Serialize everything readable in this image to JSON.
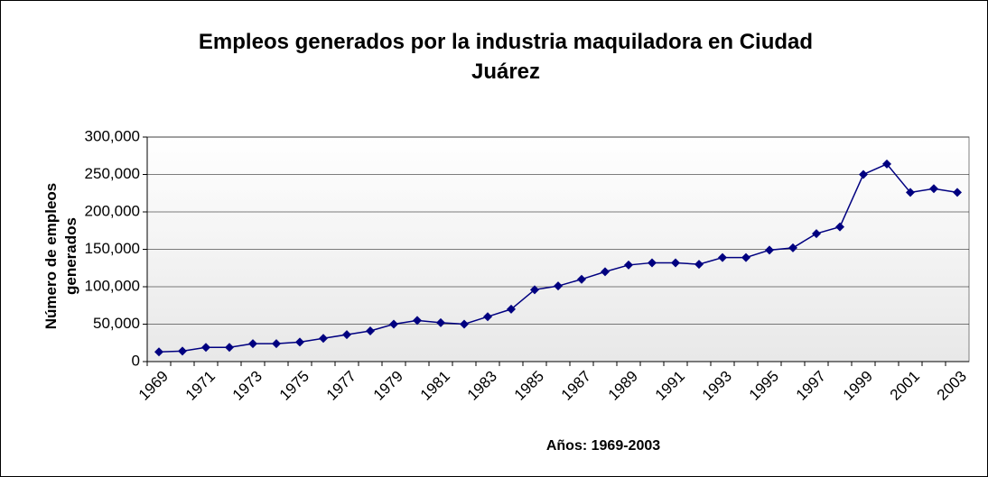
{
  "chart_data": {
    "type": "line",
    "title": "Empleos generados por la industria maquiladora en Ciudad Juárez",
    "x_label": "Años: 1969-2003",
    "y_label": "Número de empleos generados",
    "categories": [
      "1969",
      null,
      "1971",
      null,
      "1973",
      null,
      "1975",
      null,
      "1977",
      null,
      "1979",
      null,
      "1981",
      null,
      "1983",
      null,
      "1985",
      null,
      "1987",
      null,
      "1989",
      null,
      "1991",
      null,
      "1993",
      null,
      "1995",
      null,
      "1997",
      null,
      "1999",
      null,
      "2001",
      null,
      "2003"
    ],
    "series": [
      {
        "name": "Empleos",
        "color": "#000080",
        "values": [
          13000,
          14000,
          19000,
          19000,
          24000,
          24000,
          26000,
          31000,
          36000,
          41000,
          50000,
          55000,
          52000,
          50000,
          60000,
          70000,
          96000,
          101000,
          110000,
          120000,
          129000,
          132000,
          132000,
          130000,
          139000,
          139000,
          149000,
          152000,
          171000,
          180000,
          250000,
          264000,
          226000,
          231000,
          226000
        ]
      }
    ],
    "ylim": [
      0,
      300000
    ],
    "yticks": [
      0,
      {
        "value": 50000,
        "label": "50,000"
      },
      {
        "value": 100000,
        "label": "100,000"
      },
      {
        "value": 150000,
        "label": "150,000"
      },
      {
        "value": 200000,
        "label": "200,000"
      },
      {
        "value": 250000,
        "label": "250,000"
      },
      {
        "value": 300000,
        "label": "300,000"
      }
    ],
    "grid": true
  }
}
